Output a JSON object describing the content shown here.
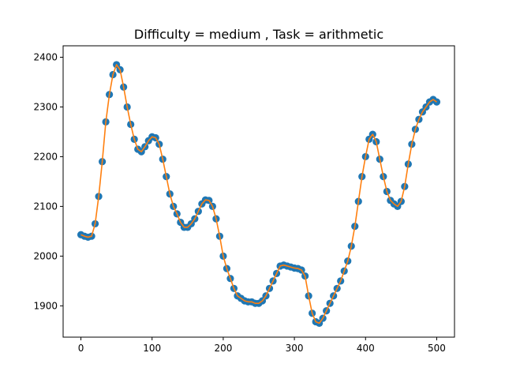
{
  "chart_data": {
    "type": "scatter",
    "title": "Difficulty = medium , Task = arithmetic",
    "xlabel": "",
    "ylabel": "",
    "xlim": [
      -25,
      525
    ],
    "ylim": [
      1837,
      2423
    ],
    "xticks": [
      0,
      100,
      200,
      300,
      400,
      500
    ],
    "yticks": [
      1900,
      2000,
      2100,
      2200,
      2300,
      2400
    ],
    "grid": false,
    "colors": {
      "points": "#1f77b4",
      "line": "#ff7f0e"
    },
    "series": [
      {
        "kind": "scatter-with-line",
        "x": [
          0,
          5,
          10,
          15,
          20,
          25,
          30,
          35,
          40,
          45,
          50,
          55,
          60,
          65,
          70,
          75,
          80,
          85,
          90,
          95,
          100,
          105,
          110,
          115,
          120,
          125,
          130,
          135,
          140,
          145,
          150,
          155,
          160,
          165,
          170,
          175,
          180,
          185,
          190,
          195,
          200,
          205,
          210,
          215,
          220,
          225,
          230,
          235,
          240,
          245,
          250,
          255,
          260,
          265,
          270,
          275,
          280,
          285,
          290,
          295,
          300,
          305,
          310,
          315,
          320,
          325,
          330,
          335,
          340,
          345,
          350,
          355,
          360,
          365,
          370,
          375,
          380,
          385,
          390,
          395,
          400,
          405,
          410,
          415,
          420,
          425,
          430,
          435,
          440,
          445,
          450,
          455,
          460,
          465,
          470,
          475,
          480,
          485,
          490,
          495,
          500
        ],
        "y": [
          2043,
          2040,
          2038,
          2040,
          2065,
          2120,
          2190,
          2270,
          2325,
          2365,
          2385,
          2375,
          2340,
          2300,
          2265,
          2235,
          2215,
          2210,
          2220,
          2232,
          2240,
          2238,
          2225,
          2195,
          2160,
          2125,
          2100,
          2085,
          2068,
          2058,
          2058,
          2065,
          2075,
          2090,
          2105,
          2113,
          2112,
          2100,
          2075,
          2040,
          2000,
          1975,
          1955,
          1935,
          1920,
          1915,
          1910,
          1908,
          1908,
          1905,
          1905,
          1910,
          1920,
          1935,
          1950,
          1965,
          1980,
          1982,
          1980,
          1978,
          1976,
          1975,
          1972,
          1960,
          1920,
          1885,
          1868,
          1865,
          1875,
          1890,
          1905,
          1920,
          1935,
          1950,
          1970,
          1990,
          2020,
          2060,
          2110,
          2160,
          2200,
          2235,
          2245,
          2230,
          2195,
          2160,
          2130,
          2112,
          2105,
          2100,
          2110,
          2140,
          2185,
          2225,
          2255,
          2275,
          2290,
          2300,
          2310,
          2315,
          2310
        ]
      }
    ]
  }
}
